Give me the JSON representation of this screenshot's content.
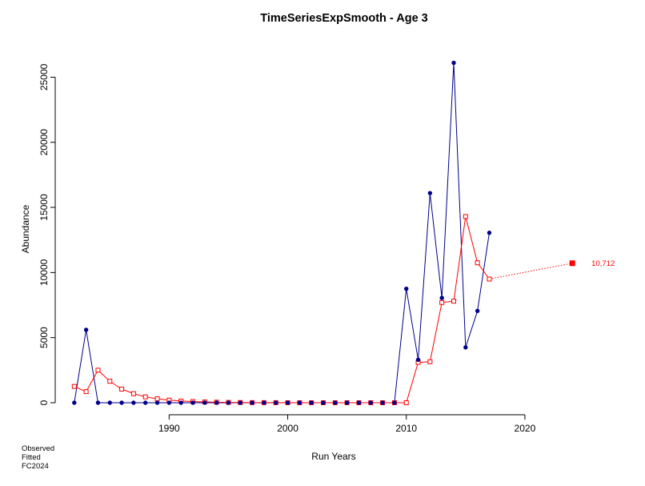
{
  "chart_data": {
    "type": "line",
    "title": "TimeSeriesExpSmooth - Age 3",
    "xlabel": "Run Years",
    "ylabel": "Abundance",
    "xlim": [
      1981,
      2025
    ],
    "ylim": [
      0,
      26500
    ],
    "x_ticks": [
      1990,
      2000,
      2010,
      2020
    ],
    "y_ticks": [
      0,
      5000,
      10000,
      15000,
      20000,
      25000
    ],
    "grid": false,
    "colors": {
      "observed": "#00008b",
      "fitted": "#ff0000",
      "forecast": "#ff0000"
    },
    "x": [
      1982,
      1983,
      1984,
      1985,
      1986,
      1987,
      1988,
      1989,
      1990,
      1991,
      1992,
      1993,
      1994,
      1995,
      1996,
      1997,
      1998,
      1999,
      2000,
      2001,
      2002,
      2003,
      2004,
      2005,
      2006,
      2007,
      2008,
      2009,
      2010,
      2011,
      2012,
      2013,
      2014,
      2015,
      2016,
      2017
    ],
    "series": [
      {
        "name": "Observed",
        "values": [
          0,
          5600,
          0,
          0,
          0,
          0,
          0,
          0,
          0,
          0,
          0,
          0,
          0,
          0,
          0,
          0,
          0,
          0,
          0,
          0,
          0,
          0,
          0,
          0,
          0,
          0,
          0,
          0,
          8750,
          3300,
          16100,
          8050,
          26100,
          4250,
          7050,
          13050
        ]
      },
      {
        "name": "Fitted",
        "values": [
          1250,
          850,
          2500,
          1650,
          1050,
          700,
          450,
          300,
          200,
          130,
          90,
          60,
          40,
          25,
          15,
          10,
          8,
          5,
          3,
          2,
          2,
          1,
          1,
          1,
          0,
          0,
          0,
          0,
          0,
          3100,
          3150,
          7700,
          7800,
          14300,
          10750,
          9500
        ]
      }
    ],
    "forecast": {
      "x": 2024,
      "value": 10712,
      "label": "10,712"
    },
    "legend": [
      "Observed",
      "Fitted",
      "FC2024"
    ],
    "legend_position": "bottom-left"
  }
}
